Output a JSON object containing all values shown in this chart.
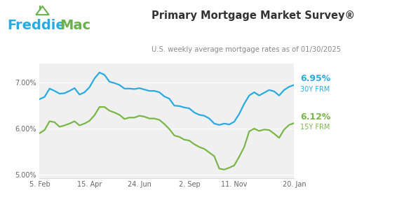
{
  "title": "Primary Mortgage Market Survey®",
  "subtitle": "U.S. weekly average mortgage rates as of 01/30/2025",
  "freddie_text": "Freddie",
  "mac_text": "Mac",
  "freddie_color": "#29abe2",
  "mac_color": "#6ab04c",
  "house_color": "#6ab04c",
  "line_30y_color": "#29abe2",
  "line_15y_color": "#7ab648",
  "label_30y": "6.95%",
  "label_30y_sub": "30Y FRM",
  "label_15y": "6.12%",
  "label_15y_sub": "15Y FRM",
  "ylim": [
    4.92,
    7.42
  ],
  "yticks": [
    5.0,
    6.0,
    7.0
  ],
  "ytick_labels": [
    "5.00%",
    "6.00%",
    "7.00%"
  ],
  "xtick_labels": [
    "5. Feb",
    "15. Apr",
    "24. Jun",
    "2. Sep",
    "11. Nov",
    "20. Jan"
  ],
  "background_color": "#ffffff",
  "plot_bg_color": "#f0f0f0",
  "grid_color": "#ffffff",
  "x_data": [
    0,
    1,
    2,
    3,
    4,
    5,
    6,
    7,
    8,
    9,
    10,
    11,
    12,
    13,
    14,
    15,
    16,
    17,
    18,
    19,
    20,
    21,
    22,
    23,
    24,
    25,
    26,
    27,
    28,
    29,
    30,
    31,
    32,
    33,
    34,
    35,
    36,
    37,
    38,
    39,
    40,
    41,
    42,
    43,
    44,
    45,
    46,
    47,
    48,
    49,
    50,
    51
  ],
  "y_30y": [
    6.64,
    6.69,
    6.87,
    6.82,
    6.76,
    6.77,
    6.82,
    6.88,
    6.74,
    6.79,
    6.9,
    7.09,
    7.22,
    7.17,
    7.02,
    6.99,
    6.95,
    6.87,
    6.87,
    6.86,
    6.88,
    6.85,
    6.82,
    6.82,
    6.79,
    6.7,
    6.65,
    6.5,
    6.49,
    6.46,
    6.44,
    6.35,
    6.3,
    6.28,
    6.22,
    6.11,
    6.08,
    6.11,
    6.09,
    6.15,
    6.32,
    6.54,
    6.72,
    6.79,
    6.72,
    6.78,
    6.84,
    6.81,
    6.72,
    6.84,
    6.91,
    6.95
  ],
  "y_15y": [
    5.9,
    5.97,
    6.16,
    6.14,
    6.04,
    6.07,
    6.11,
    6.16,
    6.07,
    6.11,
    6.17,
    6.29,
    6.47,
    6.47,
    6.39,
    6.35,
    6.3,
    6.21,
    6.24,
    6.24,
    6.28,
    6.26,
    6.22,
    6.22,
    6.19,
    6.1,
    5.99,
    5.85,
    5.82,
    5.76,
    5.74,
    5.66,
    5.6,
    5.56,
    5.48,
    5.4,
    5.13,
    5.11,
    5.15,
    5.2,
    5.39,
    5.6,
    5.94,
    6.0,
    5.95,
    5.98,
    5.97,
    5.89,
    5.8,
    5.98,
    6.08,
    6.12
  ],
  "xtick_positions": [
    0,
    10,
    20,
    30,
    39,
    51
  ]
}
